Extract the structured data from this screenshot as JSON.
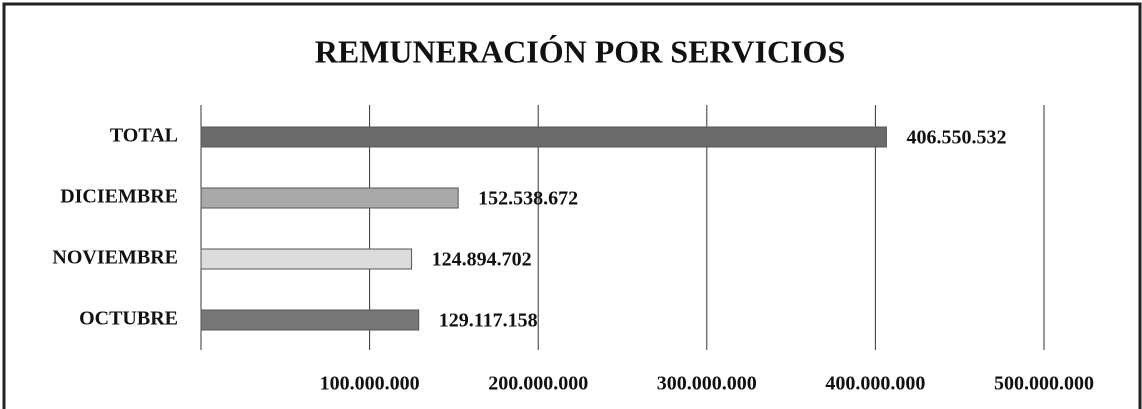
{
  "chart_data": {
    "type": "barh",
    "title": "REMUNERACIÓN POR SERVICIOS",
    "categories": [
      "TOTAL",
      "DICIEMBRE",
      "NOVIEMBRE",
      "OCTUBRE"
    ],
    "values": [
      406550532,
      152538672,
      124894702,
      129117158
    ],
    "value_labels": [
      "406.550.532",
      "152.538.672",
      "124.894.702",
      "129.117.158"
    ],
    "colors": [
      "#6b6b6b",
      "#a9a9a9",
      "#dcdcdc",
      "#777777"
    ],
    "xlim": [
      0,
      500000000
    ],
    "xticks": [
      {
        "value": 100000000,
        "label": "100.000.000"
      },
      {
        "value": 200000000,
        "label": "200.000.000"
      },
      {
        "value": 300000000,
        "label": "300.000.000"
      },
      {
        "value": 400000000,
        "label": "400.000.000"
      },
      {
        "value": 500000000,
        "label": "500.000.000"
      }
    ],
    "grid": true
  }
}
